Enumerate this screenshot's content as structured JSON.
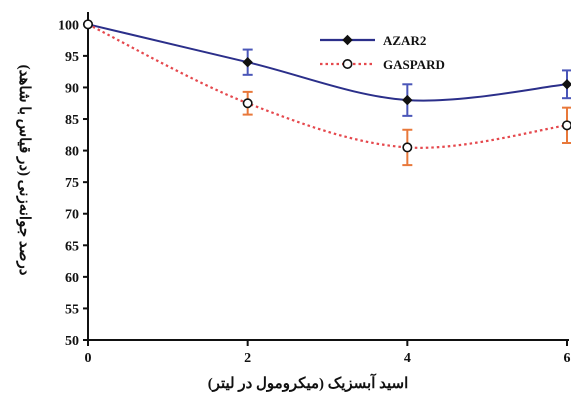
{
  "chart_data": {
    "type": "line",
    "xlabel": "اسید آبسزیک (میکرومول در لیتر)",
    "ylabel": "درصد جوانه‌زنی (در قیاس با شاهد)",
    "x": [
      0,
      2,
      4,
      6
    ],
    "x_ticks": [
      0,
      2,
      4,
      6
    ],
    "xlim": [
      0,
      6
    ],
    "y_ticks": [
      50,
      55,
      60,
      65,
      70,
      75,
      80,
      85,
      90,
      95,
      100
    ],
    "ylim": [
      50,
      101
    ],
    "grid": false,
    "legend_position": "top-right",
    "series": [
      {
        "name": "AZAR2",
        "values": [
          100,
          94,
          88,
          90.5
        ],
        "error": [
          0,
          2,
          2.5,
          2.2
        ],
        "color": "#2b2f8a",
        "error_color": "#4a56b8",
        "line_style": "solid",
        "marker": "filled-diamond"
      },
      {
        "name": "GASPARD",
        "values": [
          100,
          87.5,
          80.5,
          84
        ],
        "error": [
          0,
          1.8,
          2.8,
          2.8
        ],
        "color": "#e5484d",
        "error_color": "#e8783a",
        "line_style": "dotted",
        "marker": "open-circle"
      }
    ]
  }
}
